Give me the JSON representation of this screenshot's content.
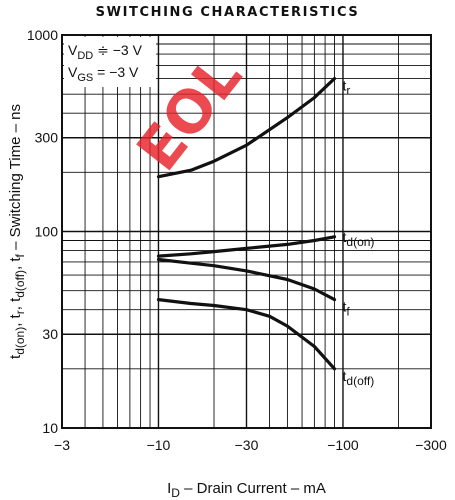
{
  "chart_data": {
    "type": "line",
    "title": "SWITCHING CHARACTERISTICS",
    "xlabel": "I_D – Drain Current – mA",
    "xlabel_parts": {
      "main": "I",
      "sub": "D",
      "rest": " – Drain Current – mA"
    },
    "ylabel": "t_d(on), t_r, t_d(off), t_f – Switching Time – ns",
    "x_scale": "log",
    "y_scale": "log",
    "xlim": [
      -3,
      -300
    ],
    "ylim": [
      10,
      1000
    ],
    "x_ticks": [
      -3,
      -10,
      -30,
      -100,
      -300
    ],
    "x_tick_labels": [
      "−3",
      "−10",
      "−30",
      "−100",
      "−300"
    ],
    "y_ticks": [
      10,
      30,
      100,
      300,
      1000
    ],
    "y_tick_labels": [
      "10",
      "30",
      "100",
      "300",
      "1000"
    ],
    "grid": true,
    "conditions": [
      {
        "sym": "V",
        "sub": "DD",
        "rest": " ≑ −3 V"
      },
      {
        "sym": "V",
        "sub": "GS",
        "rest": " = −3 V"
      }
    ],
    "series": [
      {
        "name": "t_r",
        "label_main": "t",
        "label_sub": "r",
        "x": [
          -10,
          -15,
          -20,
          -30,
          -50,
          -70,
          -90
        ],
        "y": [
          190,
          205,
          228,
          275,
          380,
          480,
          600
        ]
      },
      {
        "name": "t_d(on)",
        "label_main": "t",
        "label_sub": "d(on)",
        "x": [
          -10,
          -15,
          -20,
          -30,
          -50,
          -70,
          -90
        ],
        "y": [
          75,
          77,
          79,
          82,
          86,
          90,
          94
        ]
      },
      {
        "name": "t_f",
        "label_main": "t",
        "label_sub": "f",
        "x": [
          -10,
          -15,
          -20,
          -30,
          -50,
          -70,
          -90
        ],
        "y": [
          72,
          69,
          67,
          63,
          57,
          51,
          45
        ]
      },
      {
        "name": "t_d(off)",
        "label_main": "t",
        "label_sub": "d(off)",
        "x": [
          -10,
          -15,
          -20,
          -30,
          -40,
          -50,
          -70,
          -90
        ],
        "y": [
          45,
          43,
          42,
          40,
          37,
          33,
          26,
          20
        ]
      }
    ],
    "watermark": "EOL"
  }
}
